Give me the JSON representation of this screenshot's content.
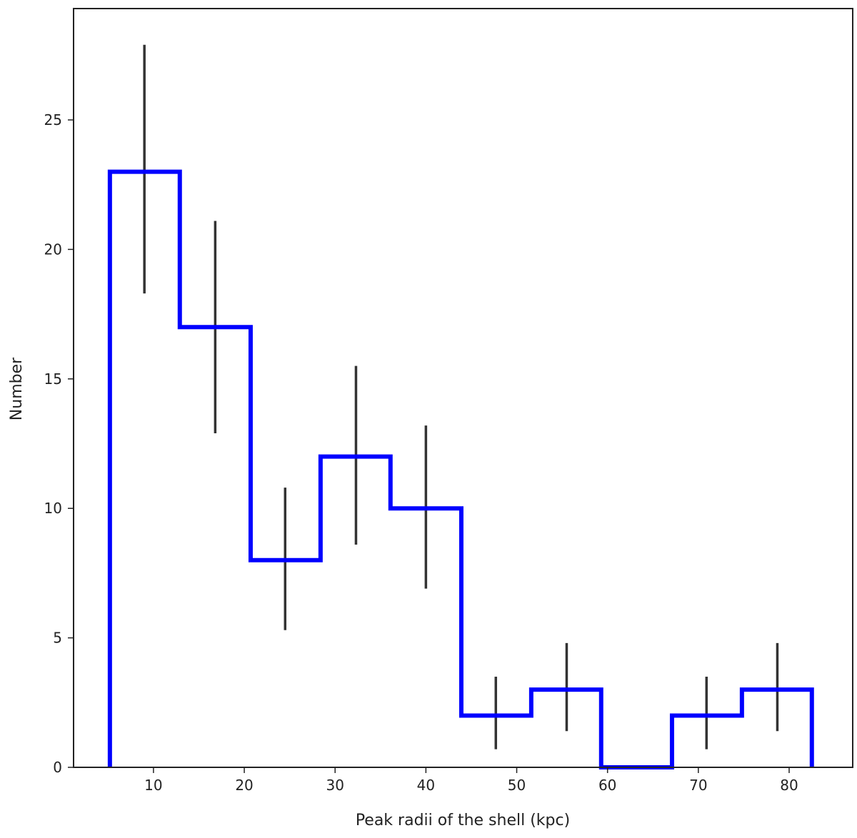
{
  "chart_data": {
    "type": "histogram",
    "xlabel": "Peak radii of the shell (kpc)",
    "ylabel": "Number",
    "xlim": [
      1.2,
      87.0
    ],
    "ylim": [
      0,
      29.3
    ],
    "xticks": [
      10,
      20,
      30,
      40,
      50,
      60,
      70,
      80
    ],
    "yticks": [
      0,
      5,
      10,
      15,
      20,
      25
    ],
    "grid": false,
    "legend": "none",
    "bin_edges": [
      5.2,
      12.9,
      20.7,
      28.4,
      36.1,
      43.9,
      51.6,
      59.3,
      67.1,
      74.8,
      82.5
    ],
    "counts": [
      23,
      17,
      8,
      12,
      10,
      2,
      3,
      0,
      2,
      3
    ],
    "error_bars": [
      {
        "x": 9.0,
        "low": 18.3,
        "high": 27.9
      },
      {
        "x": 16.8,
        "low": 12.9,
        "high": 21.1
      },
      {
        "x": 24.5,
        "low": 5.3,
        "high": 10.8
      },
      {
        "x": 32.3,
        "low": 8.6,
        "high": 15.5
      },
      {
        "x": 40.0,
        "low": 6.9,
        "high": 13.2
      },
      {
        "x": 47.7,
        "low": 0.7,
        "high": 3.5
      },
      {
        "x": 55.5,
        "low": 1.4,
        "high": 4.8
      },
      {
        "x": 70.9,
        "low": 0.7,
        "high": 3.5
      },
      {
        "x": 78.7,
        "low": 1.4,
        "high": 4.8
      }
    ],
    "colors": {
      "histogram": "#0000ff",
      "error_bars": "#333333",
      "axes": "#222222"
    }
  }
}
